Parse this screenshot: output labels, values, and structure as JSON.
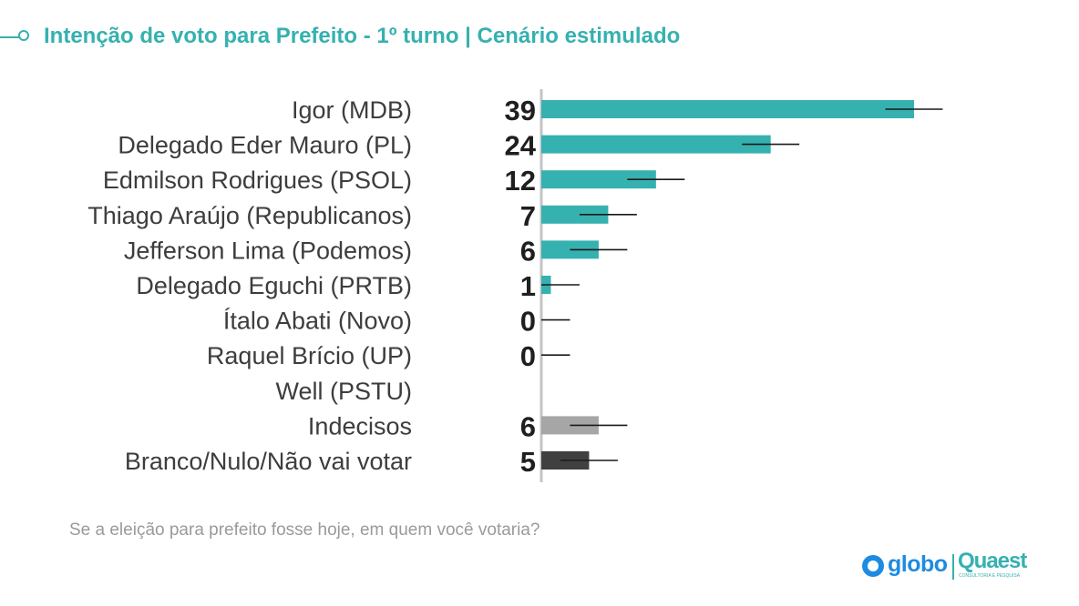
{
  "header": {
    "title": "Intenção de voto para Prefeito - 1º turno | Cenário estimulado"
  },
  "chart_data": {
    "type": "bar",
    "orientation": "horizontal",
    "categories": [
      "Igor (MDB)",
      "Delegado Eder Mauro (PL)",
      "Edmilson Rodrigues (PSOL)",
      "Thiago Araújo (Republicanos)",
      "Jefferson Lima (Podemos)",
      "Delegado Eguchi (PRTB)",
      "Ítalo Abati (Novo)",
      "Raquel Brício (UP)",
      "Well (PSTU)",
      "Indecisos",
      "Branco/Nulo/Não vai votar"
    ],
    "values": [
      39,
      24,
      12,
      7,
      6,
      1,
      0,
      0,
      null,
      6,
      5
    ],
    "value_labels": [
      "39",
      "24",
      "12",
      "7",
      "6",
      "1",
      "0",
      "0",
      "",
      "6",
      "5"
    ],
    "margin_of_error": 3,
    "xlim": [
      0,
      50
    ],
    "colors": {
      "candidate": "#35b1b0",
      "undecided": "#a6a6a6",
      "blank_null": "#404040",
      "error_bar": "#1a1a1a",
      "axis": "#c4c4c4"
    },
    "bar_kinds": [
      "candidate",
      "candidate",
      "candidate",
      "candidate",
      "candidate",
      "candidate",
      "candidate",
      "candidate",
      "candidate",
      "undecided",
      "blank_null"
    ]
  },
  "footer": {
    "question": "Se a eleição para prefeito fosse hoje, em quem você votaria?"
  },
  "logos": {
    "globo": "globo",
    "quaest": "Quaest",
    "quaest_sub": "CONSULTORIA E PESQUISA"
  }
}
